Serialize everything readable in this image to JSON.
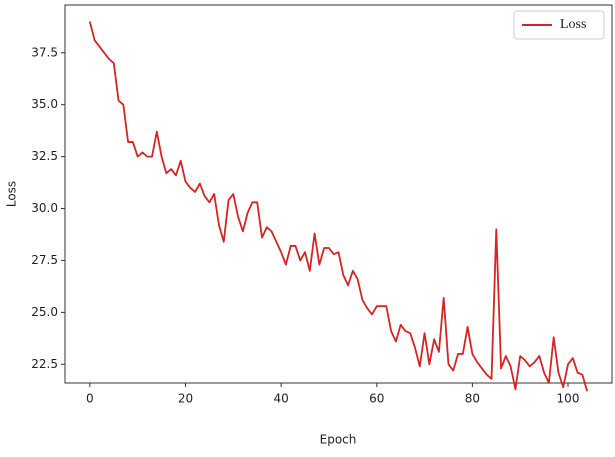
{
  "chart_data": {
    "type": "line",
    "xlabel": "Epoch",
    "ylabel": "Loss",
    "x": [
      0,
      1,
      2,
      3,
      4,
      5,
      6,
      7,
      8,
      9,
      10,
      11,
      12,
      13,
      14,
      15,
      16,
      17,
      18,
      19,
      20,
      21,
      22,
      23,
      24,
      25,
      26,
      27,
      28,
      29,
      30,
      31,
      32,
      33,
      34,
      35,
      36,
      37,
      38,
      39,
      40,
      41,
      42,
      43,
      44,
      45,
      46,
      47,
      48,
      49,
      50,
      51,
      52,
      53,
      54,
      55,
      56,
      57,
      58,
      59,
      60,
      61,
      62,
      63,
      64,
      65,
      66,
      67,
      68,
      69,
      70,
      71,
      72,
      73,
      74,
      75,
      76,
      77,
      78,
      79,
      80,
      81,
      82,
      83,
      84,
      85,
      86,
      87,
      88,
      89,
      90,
      91,
      92,
      93,
      94,
      95,
      96,
      97,
      98,
      99,
      100,
      101,
      102,
      103,
      104
    ],
    "series": [
      {
        "name": "Loss",
        "color": "#d42424",
        "values": [
          39.0,
          38.1,
          37.8,
          37.5,
          37.2,
          37.0,
          35.2,
          35.0,
          33.2,
          33.2,
          32.5,
          32.7,
          32.5,
          32.5,
          33.7,
          32.5,
          31.7,
          31.9,
          31.6,
          32.3,
          31.3,
          31.0,
          30.8,
          31.2,
          30.6,
          30.3,
          30.7,
          29.2,
          28.4,
          30.4,
          30.7,
          29.6,
          28.9,
          29.8,
          30.3,
          30.3,
          28.6,
          29.1,
          28.9,
          28.4,
          27.9,
          27.3,
          28.2,
          28.2,
          27.5,
          27.9,
          27.0,
          28.8,
          27.3,
          28.1,
          28.1,
          27.8,
          27.9,
          26.8,
          26.3,
          27.0,
          26.6,
          25.6,
          25.2,
          24.9,
          25.3,
          25.3,
          25.3,
          24.1,
          23.6,
          24.4,
          24.1,
          24.0,
          23.3,
          22.4,
          24.0,
          22.5,
          23.7,
          23.1,
          25.7,
          22.5,
          22.2,
          23.0,
          23.0,
          24.3,
          23.0,
          22.6,
          22.3,
          22.0,
          21.8,
          29.0,
          22.3,
          22.9,
          22.4,
          21.3,
          22.9,
          22.7,
          22.4,
          22.6,
          22.9,
          22.1,
          21.6,
          23.8,
          22.1,
          21.4,
          22.5,
          22.8,
          22.1,
          22.0,
          21.2
        ]
      }
    ],
    "xlim": [
      -5.2,
      109.2
    ],
    "ylim": [
      21.6,
      39.8
    ],
    "xticks": [
      0,
      20,
      40,
      60,
      80,
      100
    ],
    "yticks": [
      {
        "value": 22.5,
        "label": "22.5"
      },
      {
        "value": 25,
        "label": "25.0"
      },
      27.5,
      {
        "value": 30,
        "label": "30.0"
      },
      32.5,
      {
        "value": 35,
        "label": "35.0"
      },
      37.5
    ],
    "legend": "upper right",
    "grid": false
  }
}
